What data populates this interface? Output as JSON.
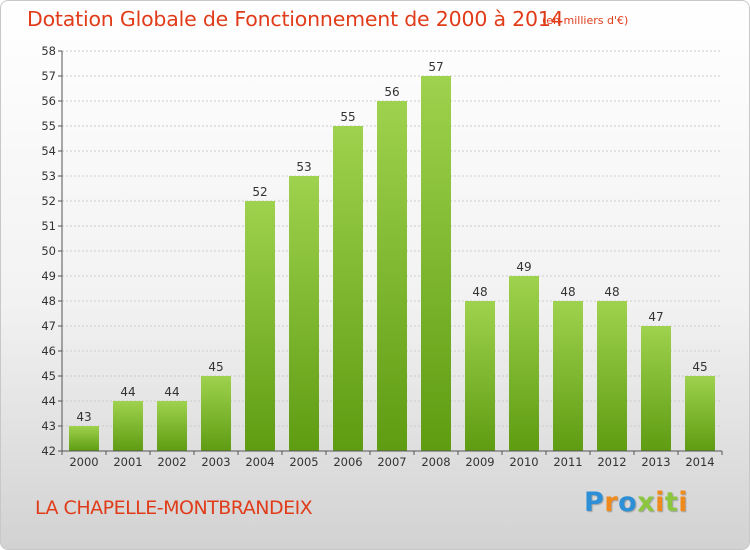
{
  "header": {
    "title": "Dotation Globale de Fonctionnement de 2000 à 2014",
    "unit_note": "(en milliers d'€)"
  },
  "footer": {
    "commune": "LA CHAPELLE-MONTBRANDEIX",
    "logo_text": "Proxiti"
  },
  "colors": {
    "title": "#e03c1a",
    "bar_light": "#9fd24e",
    "bar_dark": "#5e9c12",
    "grid": "#cccccc",
    "axis": "#555555",
    "logo_blue": "#2d8fd6",
    "logo_orange": "#f08a1c",
    "logo_green": "#8cc63f"
  },
  "chart_data": {
    "type": "bar",
    "title": "Dotation Globale de Fonctionnement de 2000 à 2014",
    "subtitle": "(en milliers d'€)",
    "xlabel": "",
    "ylabel": "",
    "categories": [
      "2000",
      "2001",
      "2002",
      "2003",
      "2004",
      "2005",
      "2006",
      "2007",
      "2008",
      "2009",
      "2010",
      "2011",
      "2012",
      "2013",
      "2014"
    ],
    "values": [
      43,
      44,
      44,
      45,
      52,
      53,
      55,
      56,
      57,
      48,
      49,
      48,
      48,
      47,
      45
    ],
    "ylim": [
      42,
      58
    ],
    "yticks": [
      42,
      43,
      44,
      45,
      46,
      47,
      48,
      49,
      50,
      51,
      52,
      53,
      54,
      55,
      56,
      57,
      58
    ],
    "grid": true,
    "data_labels": true
  }
}
